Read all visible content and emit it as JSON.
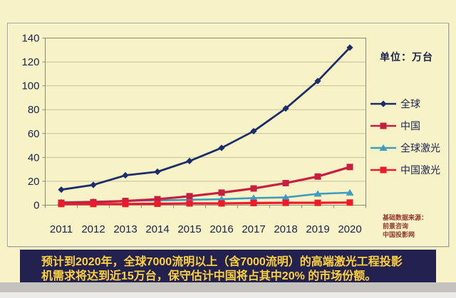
{
  "chart_data": {
    "type": "line",
    "x": [
      2011,
      2012,
      2013,
      2014,
      2015,
      2016,
      2017,
      2018,
      2019,
      2020
    ],
    "series": [
      {
        "key": "global",
        "name": "全球",
        "color": "#1c2d6b",
        "marker": "diamond",
        "values": [
          13,
          17,
          25,
          28,
          37,
          48,
          62,
          81,
          104,
          132
        ]
      },
      {
        "key": "china",
        "name": "中国",
        "color": "#c71f3f",
        "marker": "square",
        "values": [
          2,
          2.5,
          3.5,
          5,
          7.5,
          10.5,
          14,
          18.5,
          24,
          32
        ]
      },
      {
        "key": "global-laser",
        "name": "全球激光",
        "color": "#3e9cc2",
        "marker": "triangle",
        "values": [
          2.5,
          3,
          3.5,
          4,
          4.5,
          5,
          6,
          6.5,
          9.5,
          10.5
        ]
      },
      {
        "key": "china-laser",
        "name": "中国激光",
        "color": "#ec1b2c",
        "marker": "square",
        "values": [
          1,
          1,
          1,
          1.2,
          1.5,
          1.5,
          1.8,
          2,
          2,
          2.2
        ]
      }
    ],
    "ylim": [
      0,
      140
    ],
    "ytick_step": 20,
    "unit_label": "单位：万台",
    "grid": true,
    "legend_position": "right",
    "title": "",
    "xlabel": "",
    "ylabel": ""
  },
  "caption": {
    "line1": "预计到2020年，全球7000流明以上（含7000流明）的高端激光工程投影",
    "line2": "机需求将达到近15万台，保守估计中国将占其中20% 的市场份额。"
  },
  "source": {
    "lines": [
      "基础数据来源：",
      "前景咨询",
      "中国投影网"
    ]
  },
  "colors": {
    "background": "#f8f3c6",
    "grid": "#c3bf9e",
    "axis": "#8a8a78",
    "text": "#1a2150",
    "caption_band": "#232150",
    "caption_text": "#ffd23e",
    "source_text": "#93392c"
  }
}
